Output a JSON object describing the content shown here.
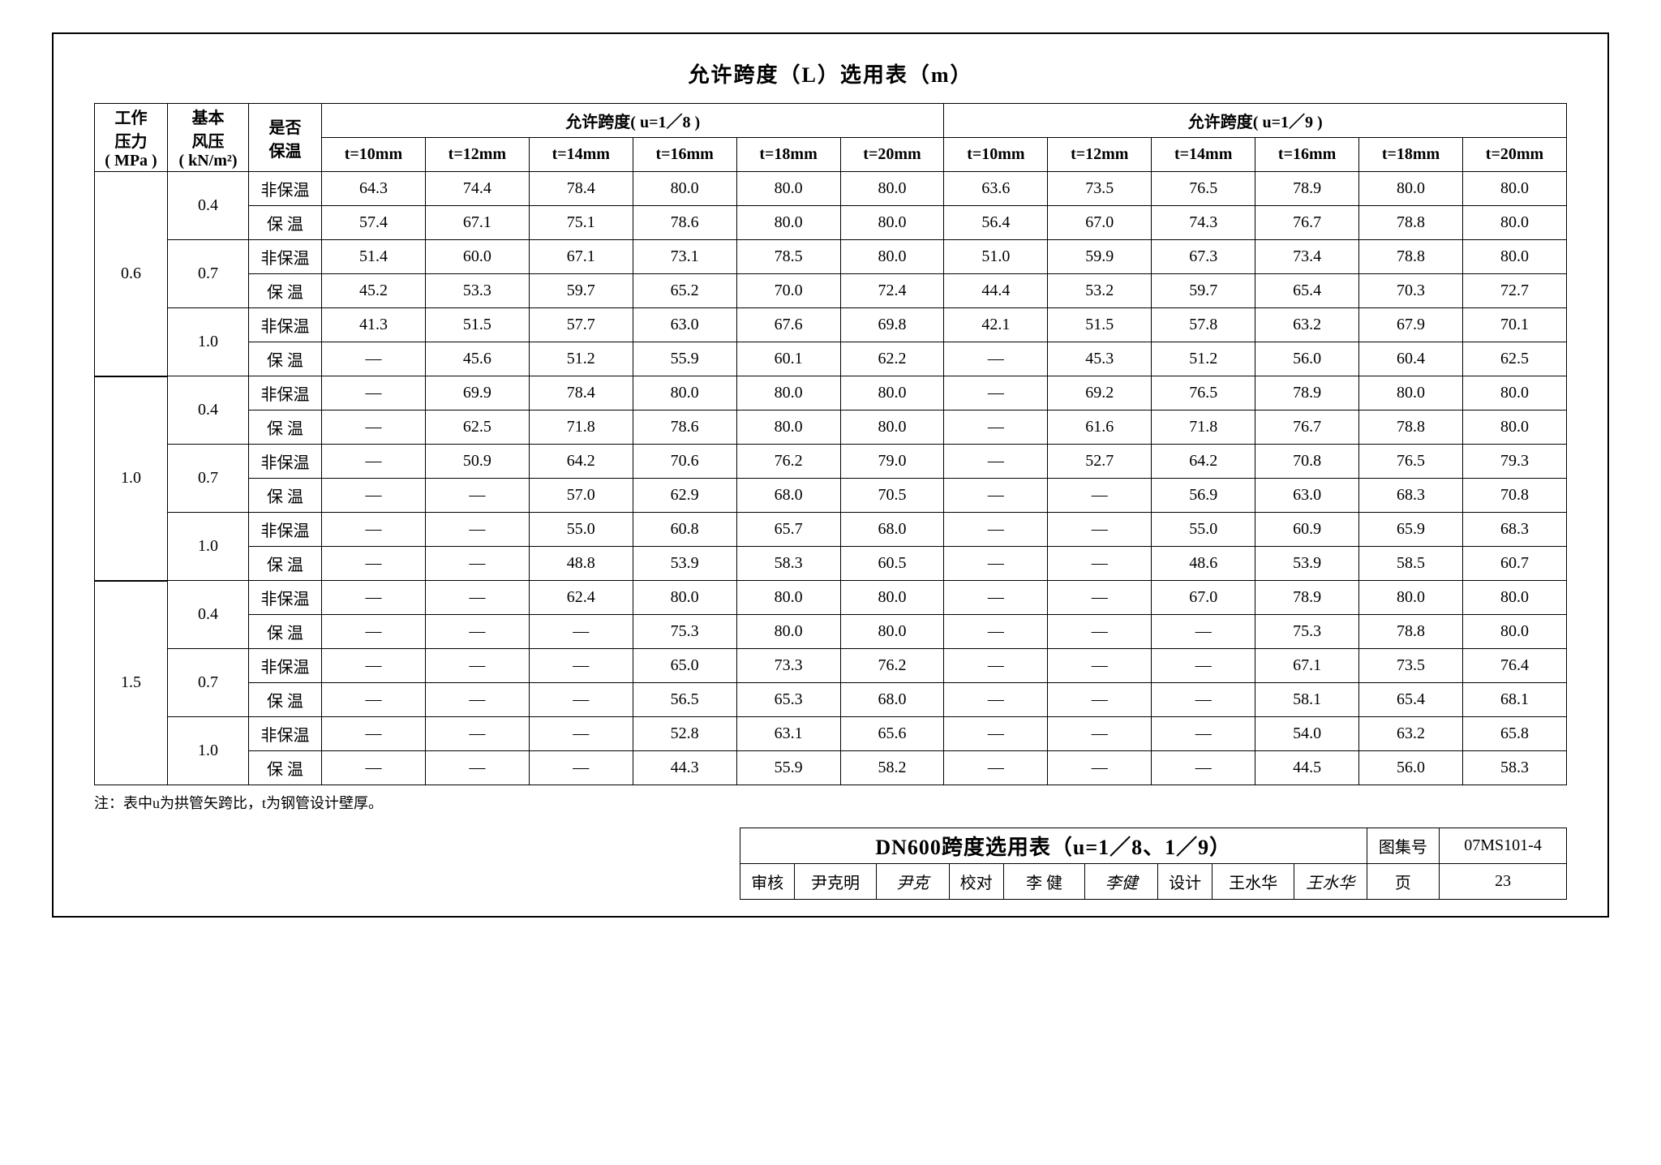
{
  "title": "允许跨度（L）选用表（m）",
  "note": "注：表中u为拱管矢跨比，t为钢管设计壁厚。",
  "header": {
    "col1": "工作\n压力\n( MPa )",
    "col2": "基本\n风压\n( kN/m²)",
    "col3": "是否\n保温",
    "span18": "允许跨度( u=1／8 )",
    "span19": "允许跨度( u=1／9 )",
    "t": [
      "t=10mm",
      "t=12mm",
      "t=14mm",
      "t=16mm",
      "t=18mm",
      "t=20mm"
    ]
  },
  "groups": [
    {
      "mpa": "0.6",
      "winds": [
        {
          "w": "0.4",
          "rows": [
            {
              "ins": "非保温",
              "u18": [
                "64.3",
                "74.4",
                "78.4",
                "80.0",
                "80.0",
                "80.0"
              ],
              "u19": [
                "63.6",
                "73.5",
                "76.5",
                "78.9",
                "80.0",
                "80.0"
              ]
            },
            {
              "ins": "保 温",
              "u18": [
                "57.4",
                "67.1",
                "75.1",
                "78.6",
                "80.0",
                "80.0"
              ],
              "u19": [
                "56.4",
                "67.0",
                "74.3",
                "76.7",
                "78.8",
                "80.0"
              ]
            }
          ]
        },
        {
          "w": "0.7",
          "rows": [
            {
              "ins": "非保温",
              "u18": [
                "51.4",
                "60.0",
                "67.1",
                "73.1",
                "78.5",
                "80.0"
              ],
              "u19": [
                "51.0",
                "59.9",
                "67.3",
                "73.4",
                "78.8",
                "80.0"
              ]
            },
            {
              "ins": "保 温",
              "u18": [
                "45.2",
                "53.3",
                "59.7",
                "65.2",
                "70.0",
                "72.4"
              ],
              "u19": [
                "44.4",
                "53.2",
                "59.7",
                "65.4",
                "70.3",
                "72.7"
              ]
            }
          ]
        },
        {
          "w": "1.0",
          "rows": [
            {
              "ins": "非保温",
              "u18": [
                "41.3",
                "51.5",
                "57.7",
                "63.0",
                "67.6",
                "69.8"
              ],
              "u19": [
                "42.1",
                "51.5",
                "57.8",
                "63.2",
                "67.9",
                "70.1"
              ]
            },
            {
              "ins": "保 温",
              "u18": [
                "—",
                "45.6",
                "51.2",
                "55.9",
                "60.1",
                "62.2"
              ],
              "u19": [
                "—",
                "45.3",
                "51.2",
                "56.0",
                "60.4",
                "62.5"
              ]
            }
          ]
        }
      ]
    },
    {
      "mpa": "1.0",
      "winds": [
        {
          "w": "0.4",
          "rows": [
            {
              "ins": "非保温",
              "u18": [
                "—",
                "69.9",
                "78.4",
                "80.0",
                "80.0",
                "80.0"
              ],
              "u19": [
                "—",
                "69.2",
                "76.5",
                "78.9",
                "80.0",
                "80.0"
              ]
            },
            {
              "ins": "保 温",
              "u18": [
                "—",
                "62.5",
                "71.8",
                "78.6",
                "80.0",
                "80.0"
              ],
              "u19": [
                "—",
                "61.6",
                "71.8",
                "76.7",
                "78.8",
                "80.0"
              ]
            }
          ]
        },
        {
          "w": "0.7",
          "rows": [
            {
              "ins": "非保温",
              "u18": [
                "—",
                "50.9",
                "64.2",
                "70.6",
                "76.2",
                "79.0"
              ],
              "u19": [
                "—",
                "52.7",
                "64.2",
                "70.8",
                "76.5",
                "79.3"
              ]
            },
            {
              "ins": "保 温",
              "u18": [
                "—",
                "—",
                "57.0",
                "62.9",
                "68.0",
                "70.5"
              ],
              "u19": [
                "—",
                "—",
                "56.9",
                "63.0",
                "68.3",
                "70.8"
              ]
            }
          ]
        },
        {
          "w": "1.0",
          "rows": [
            {
              "ins": "非保温",
              "u18": [
                "—",
                "—",
                "55.0",
                "60.8",
                "65.7",
                "68.0"
              ],
              "u19": [
                "—",
                "—",
                "55.0",
                "60.9",
                "65.9",
                "68.3"
              ]
            },
            {
              "ins": "保 温",
              "u18": [
                "—",
                "—",
                "48.8",
                "53.9",
                "58.3",
                "60.5"
              ],
              "u19": [
                "—",
                "—",
                "48.6",
                "53.9",
                "58.5",
                "60.7"
              ]
            }
          ]
        }
      ]
    },
    {
      "mpa": "1.5",
      "winds": [
        {
          "w": "0.4",
          "rows": [
            {
              "ins": "非保温",
              "u18": [
                "—",
                "—",
                "62.4",
                "80.0",
                "80.0",
                "80.0"
              ],
              "u19": [
                "—",
                "—",
                "67.0",
                "78.9",
                "80.0",
                "80.0"
              ]
            },
            {
              "ins": "保 温",
              "u18": [
                "—",
                "—",
                "—",
                "75.3",
                "80.0",
                "80.0"
              ],
              "u19": [
                "—",
                "—",
                "—",
                "75.3",
                "78.8",
                "80.0"
              ]
            }
          ]
        },
        {
          "w": "0.7",
          "rows": [
            {
              "ins": "非保温",
              "u18": [
                "—",
                "—",
                "—",
                "65.0",
                "73.3",
                "76.2"
              ],
              "u19": [
                "—",
                "—",
                "—",
                "67.1",
                "73.5",
                "76.4"
              ]
            },
            {
              "ins": "保 温",
              "u18": [
                "—",
                "—",
                "—",
                "56.5",
                "65.3",
                "68.0"
              ],
              "u19": [
                "—",
                "—",
                "—",
                "58.1",
                "65.4",
                "68.1"
              ]
            }
          ]
        },
        {
          "w": "1.0",
          "rows": [
            {
              "ins": "非保温",
              "u18": [
                "—",
                "—",
                "—",
                "52.8",
                "63.1",
                "65.6"
              ],
              "u19": [
                "—",
                "—",
                "—",
                "54.0",
                "63.2",
                "65.8"
              ]
            },
            {
              "ins": "保 温",
              "u18": [
                "—",
                "—",
                "—",
                "44.3",
                "55.9",
                "58.2"
              ],
              "u19": [
                "—",
                "—",
                "—",
                "44.5",
                "56.0",
                "58.3"
              ]
            }
          ]
        }
      ]
    }
  ],
  "footer": {
    "doc_title": "DN600跨度选用表（u=1／8、1／9）",
    "set_label": "图集号",
    "set_no": "07MS101-4",
    "review_label": "审核",
    "review_name": "尹克明",
    "review_sig": "尹克",
    "check_label": "校对",
    "check_name": "李 健",
    "check_sig": "李健",
    "design_label": "设计",
    "design_name": "王水华",
    "design_sig": "王水华",
    "page_label": "页",
    "page_no": "23"
  }
}
